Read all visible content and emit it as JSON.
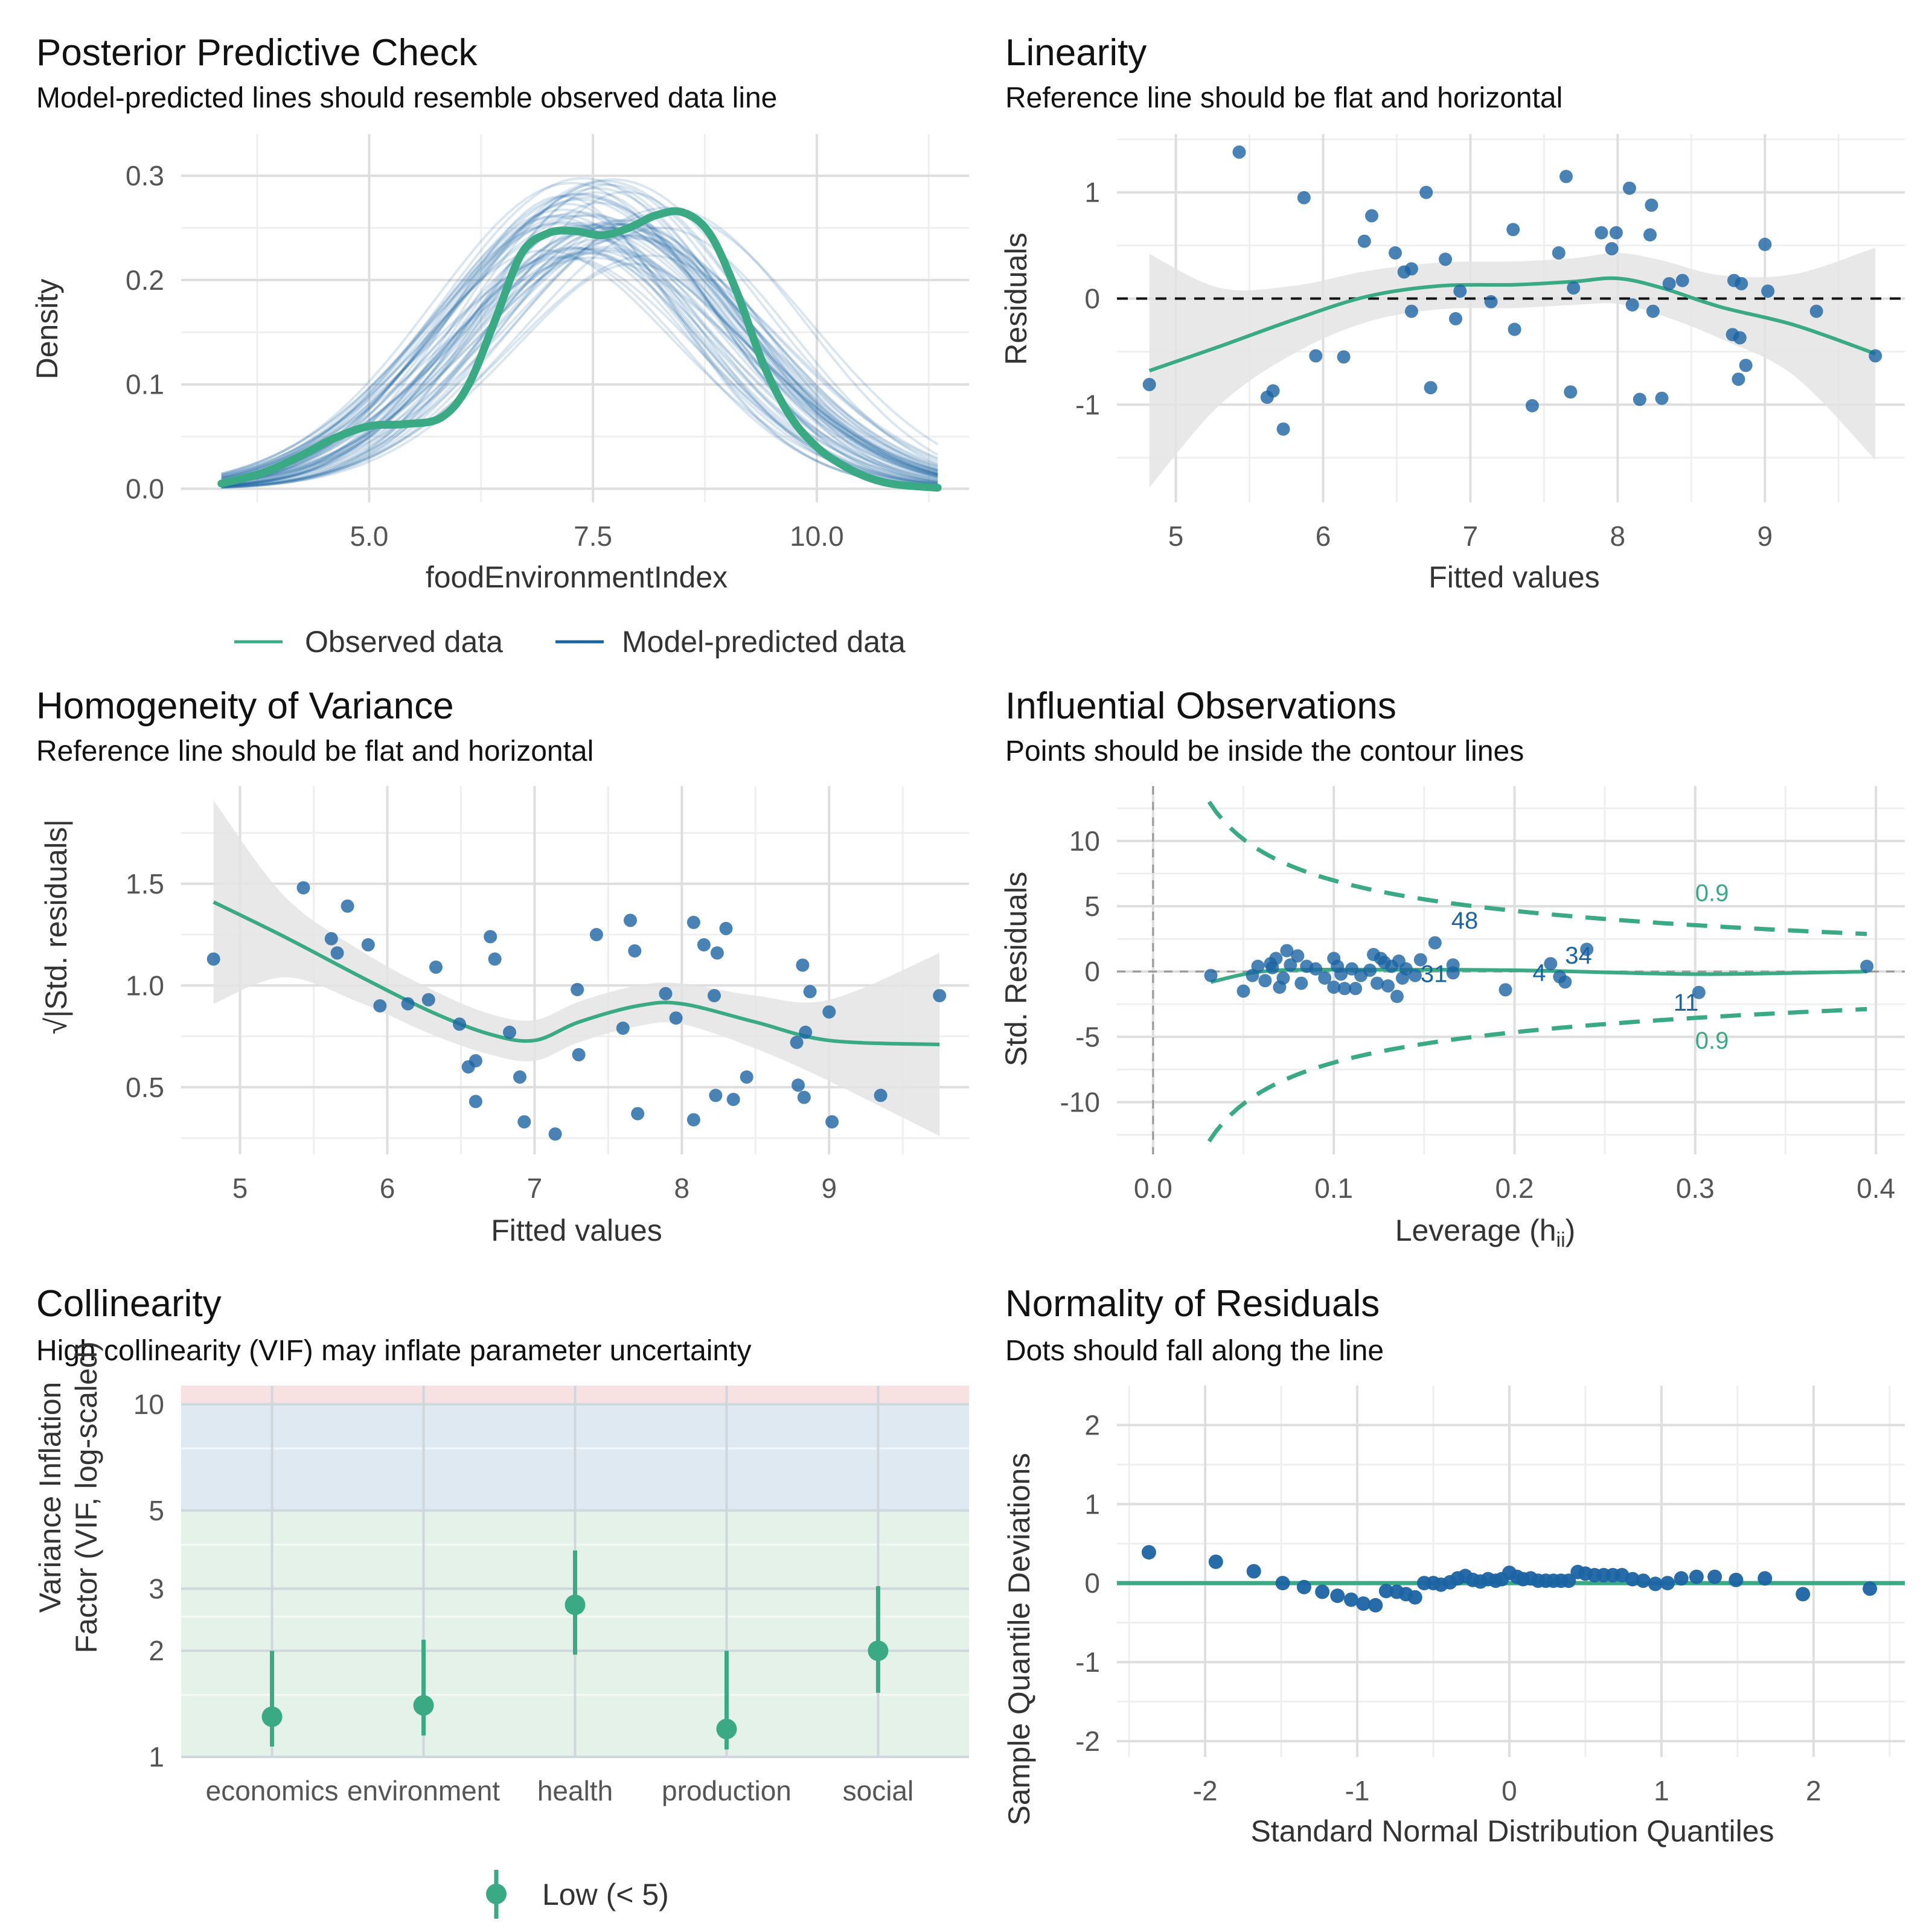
{
  "colors": {
    "observed": "#3aaa85",
    "predicted": "#1b64a3",
    "points": "#1b64a3",
    "smooth": "#3aaa85",
    "ribbon": "#e4e4e4",
    "grid_major": "#dedede",
    "grid_minor": "#efefef",
    "band_low": "#e4f2ea",
    "band_moderate": "#dfe9f1",
    "band_high": "#f8e1e1"
  },
  "chart_data": [
    {
      "id": "ppc",
      "type": "line",
      "title": "Posterior Predictive Check",
      "subtitle": "Model-predicted lines should resemble observed data line",
      "xlabel": "foodEnvironmentIndex",
      "ylabel": "Density",
      "xlim": [
        2.9,
        11.7
      ],
      "ylim": [
        -0.013,
        0.34
      ],
      "xticks": [
        5.0,
        7.5,
        10.0
      ],
      "xtick_labels": [
        "5.0",
        "7.5",
        "10.0"
      ],
      "yticks": [
        0.0,
        0.1,
        0.2,
        0.3
      ],
      "ytick_labels": [
        "0.0",
        "0.1",
        "0.2",
        "0.3"
      ],
      "legend": {
        "position": "bottom",
        "items": [
          "Observed data",
          "Model-predicted data"
        ]
      },
      "x_range": [
        3.35,
        11.35
      ],
      "series": [
        {
          "name": "Observed data",
          "x": [
            3.35,
            3.8,
            4.2,
            4.6,
            5.0,
            5.4,
            5.8,
            6.1,
            6.4,
            6.7,
            7.0,
            7.3,
            7.6,
            7.9,
            8.2,
            8.5,
            8.8,
            9.1,
            9.4,
            9.7,
            10.0,
            10.3,
            10.6,
            10.9,
            11.35
          ],
          "values": [
            0.005,
            0.015,
            0.03,
            0.048,
            0.06,
            0.062,
            0.068,
            0.098,
            0.16,
            0.225,
            0.245,
            0.247,
            0.243,
            0.25,
            0.262,
            0.265,
            0.245,
            0.19,
            0.12,
            0.07,
            0.04,
            0.022,
            0.01,
            0.004,
            0.001
          ]
        },
        {
          "name": "Model-predicted data",
          "mean": 7.6,
          "sd": 1.55,
          "peak": 0.255,
          "count": 60
        }
      ]
    },
    {
      "id": "linearity",
      "type": "scatter",
      "title": "Linearity",
      "subtitle": "Reference line should be flat and horizontal",
      "xlabel": "Fitted values",
      "ylabel": "Residuals",
      "xlim": [
        4.6,
        9.95
      ],
      "ylim": [
        -1.92,
        1.55
      ],
      "xticks": [
        5,
        6,
        7,
        8,
        9
      ],
      "yticks": [
        -1,
        0,
        1
      ],
      "reference_line": 0,
      "points": [
        [
          4.82,
          -0.81
        ],
        [
          5.43,
          1.38
        ],
        [
          5.62,
          -0.93
        ],
        [
          5.66,
          -0.87
        ],
        [
          5.73,
          -1.23
        ],
        [
          5.87,
          0.95
        ],
        [
          5.95,
          -0.54
        ],
        [
          6.14,
          -0.55
        ],
        [
          6.28,
          0.54
        ],
        [
          6.33,
          0.78
        ],
        [
          6.49,
          0.43
        ],
        [
          6.55,
          0.25
        ],
        [
          6.6,
          -0.12
        ],
        [
          6.6,
          0.28
        ],
        [
          6.7,
          1.0
        ],
        [
          6.73,
          -0.84
        ],
        [
          6.83,
          0.37
        ],
        [
          6.9,
          -0.19
        ],
        [
          6.93,
          0.07
        ],
        [
          7.14,
          -0.03
        ],
        [
          7.29,
          0.65
        ],
        [
          7.3,
          -0.29
        ],
        [
          7.42,
          -1.01
        ],
        [
          7.6,
          0.43
        ],
        [
          7.65,
          1.15
        ],
        [
          7.68,
          -0.88
        ],
        [
          7.7,
          0.1
        ],
        [
          7.89,
          0.62
        ],
        [
          7.96,
          0.47
        ],
        [
          7.99,
          0.62
        ],
        [
          8.08,
          1.04
        ],
        [
          8.1,
          -0.06
        ],
        [
          8.15,
          -0.95
        ],
        [
          8.22,
          0.6
        ],
        [
          8.23,
          0.88
        ],
        [
          8.24,
          -0.12
        ],
        [
          8.3,
          -0.94
        ],
        [
          8.35,
          0.14
        ],
        [
          8.44,
          0.17
        ],
        [
          8.78,
          -0.34
        ],
        [
          8.79,
          0.17
        ],
        [
          8.82,
          -0.76
        ],
        [
          8.83,
          -0.37
        ],
        [
          8.84,
          0.14
        ],
        [
          8.87,
          -0.63
        ],
        [
          9.0,
          0.51
        ],
        [
          9.02,
          0.07
        ],
        [
          9.35,
          -0.12
        ],
        [
          9.75,
          -0.54
        ]
      ],
      "smooth": [
        [
          4.82,
          -0.68
        ],
        [
          5.3,
          -0.45
        ],
        [
          5.8,
          -0.2
        ],
        [
          6.3,
          0.02
        ],
        [
          6.8,
          0.12
        ],
        [
          7.3,
          0.13
        ],
        [
          7.7,
          0.16
        ],
        [
          8.0,
          0.19
        ],
        [
          8.3,
          0.1
        ],
        [
          8.7,
          -0.08
        ],
        [
          9.2,
          -0.25
        ],
        [
          9.75,
          -0.52
        ]
      ],
      "ribbon_half_width": [
        [
          4.82,
          1.1
        ],
        [
          5.3,
          0.55
        ],
        [
          5.8,
          0.32
        ],
        [
          6.3,
          0.24
        ],
        [
          6.8,
          0.22
        ],
        [
          7.3,
          0.22
        ],
        [
          7.7,
          0.22
        ],
        [
          8.0,
          0.24
        ],
        [
          8.3,
          0.26
        ],
        [
          8.7,
          0.3
        ],
        [
          9.2,
          0.48
        ],
        [
          9.75,
          1.0
        ]
      ]
    },
    {
      "id": "homogeneity",
      "type": "scatter",
      "title": "Homogeneity of Variance",
      "subtitle": "Reference line should be flat and horizontal",
      "xlabel": "Fitted values",
      "ylabel": "√|Std. residuals|",
      "xlim": [
        4.6,
        9.95
      ],
      "ylim": [
        0.17,
        1.98
      ],
      "xticks": [
        5,
        6,
        7,
        8,
        9
      ],
      "yticks": [
        0.5,
        1.0,
        1.5
      ],
      "ytick_labels": [
        "0.5",
        "1.0",
        "1.5"
      ],
      "points": [
        [
          4.82,
          1.13
        ],
        [
          5.43,
          1.48
        ],
        [
          5.62,
          1.23
        ],
        [
          5.66,
          1.16
        ],
        [
          5.73,
          1.39
        ],
        [
          5.87,
          1.2
        ],
        [
          5.95,
          0.9
        ],
        [
          6.14,
          0.91
        ],
        [
          6.28,
          0.93
        ],
        [
          6.33,
          1.09
        ],
        [
          6.49,
          0.81
        ],
        [
          6.55,
          0.6
        ],
        [
          6.6,
          0.63
        ],
        [
          6.6,
          0.43
        ],
        [
          6.7,
          1.24
        ],
        [
          6.73,
          1.13
        ],
        [
          6.83,
          0.77
        ],
        [
          6.9,
          0.55
        ],
        [
          6.93,
          0.33
        ],
        [
          7.14,
          0.27
        ],
        [
          7.29,
          0.98
        ],
        [
          7.3,
          0.66
        ],
        [
          7.42,
          1.25
        ],
        [
          7.6,
          0.79
        ],
        [
          7.65,
          1.32
        ],
        [
          7.68,
          1.17
        ],
        [
          7.7,
          0.37
        ],
        [
          7.89,
          0.96
        ],
        [
          7.96,
          0.84
        ],
        [
          8.08,
          1.31
        ],
        [
          8.08,
          0.34
        ],
        [
          8.15,
          1.2
        ],
        [
          8.22,
          0.95
        ],
        [
          8.23,
          0.46
        ],
        [
          8.24,
          1.16
        ],
        [
          8.3,
          1.28
        ],
        [
          8.35,
          0.44
        ],
        [
          8.44,
          0.55
        ],
        [
          8.78,
          0.72
        ],
        [
          8.79,
          0.51
        ],
        [
          8.82,
          1.1
        ],
        [
          8.83,
          0.45
        ],
        [
          8.84,
          0.77
        ],
        [
          8.87,
          0.97
        ],
        [
          9.0,
          0.87
        ],
        [
          9.02,
          0.33
        ],
        [
          9.35,
          0.46
        ],
        [
          9.75,
          0.95
        ]
      ],
      "smooth": [
        [
          4.82,
          1.41
        ],
        [
          5.3,
          1.24
        ],
        [
          5.8,
          1.05
        ],
        [
          6.3,
          0.87
        ],
        [
          6.7,
          0.76
        ],
        [
          7.0,
          0.73
        ],
        [
          7.3,
          0.82
        ],
        [
          7.7,
          0.9
        ],
        [
          8.0,
          0.91
        ],
        [
          8.5,
          0.82
        ],
        [
          9.0,
          0.73
        ],
        [
          9.75,
          0.71
        ]
      ],
      "ribbon_half_width": [
        [
          4.82,
          0.5
        ],
        [
          5.3,
          0.2
        ],
        [
          5.8,
          0.13
        ],
        [
          6.3,
          0.11
        ],
        [
          6.7,
          0.1
        ],
        [
          7.0,
          0.1
        ],
        [
          7.3,
          0.1
        ],
        [
          7.7,
          0.1
        ],
        [
          8.0,
          0.1
        ],
        [
          8.5,
          0.13
        ],
        [
          9.0,
          0.2
        ],
        [
          9.75,
          0.45
        ]
      ]
    },
    {
      "id": "influential",
      "type": "scatter",
      "title": "Influential Observations",
      "subtitle": "Points should be inside the contour lines",
      "xlabel": "Leverage (h",
      "xlabel_subscript": "ii",
      "xlabel_end": ")",
      "ylabel": "Std. Residuals",
      "xlim": [
        -0.02,
        0.416
      ],
      "ylim": [
        -14.0,
        14.2
      ],
      "xticks": [
        0.0,
        0.1,
        0.2,
        0.3,
        0.4
      ],
      "xtick_labels": [
        "0.0",
        "0.1",
        "0.2",
        "0.3",
        "0.4"
      ],
      "yticks": [
        -10,
        -5,
        0,
        5,
        10
      ],
      "contour_label": "0.9",
      "contour_xrange": [
        0.031,
        0.395
      ],
      "points": [
        [
          0.032,
          -0.3
        ],
        [
          0.05,
          -1.5
        ],
        [
          0.055,
          -0.3
        ],
        [
          0.058,
          0.4
        ],
        [
          0.062,
          -0.7
        ],
        [
          0.065,
          0.6
        ],
        [
          0.066,
          0.3
        ],
        [
          0.068,
          1.0
        ],
        [
          0.07,
          -1.2
        ],
        [
          0.072,
          -0.5
        ],
        [
          0.074,
          1.6
        ],
        [
          0.076,
          0.5
        ],
        [
          0.08,
          1.2
        ],
        [
          0.082,
          -0.9
        ],
        [
          0.085,
          0.4
        ],
        [
          0.09,
          0.2
        ],
        [
          0.095,
          -0.5
        ],
        [
          0.1,
          -1.2
        ],
        [
          0.1,
          1.0
        ],
        [
          0.102,
          0.4
        ],
        [
          0.104,
          -0.2
        ],
        [
          0.106,
          -1.3
        ],
        [
          0.11,
          0.2
        ],
        [
          0.112,
          -1.3
        ],
        [
          0.115,
          -0.3
        ],
        [
          0.12,
          0.1
        ],
        [
          0.122,
          1.3
        ],
        [
          0.124,
          -0.9
        ],
        [
          0.126,
          1.0
        ],
        [
          0.128,
          0.7
        ],
        [
          0.13,
          -1.1
        ],
        [
          0.132,
          0.4
        ],
        [
          0.135,
          -1.9
        ],
        [
          0.136,
          0.8
        ],
        [
          0.138,
          -0.5
        ],
        [
          0.14,
          0.2
        ],
        [
          0.145,
          -0.3
        ],
        [
          0.148,
          0.9
        ],
        [
          0.156,
          2.2
        ],
        [
          0.166,
          0.5
        ],
        [
          0.166,
          -0.1
        ],
        [
          0.195,
          -1.4
        ],
        [
          0.22,
          0.6
        ],
        [
          0.225,
          -0.4
        ],
        [
          0.228,
          -0.8
        ],
        [
          0.24,
          1.7
        ],
        [
          0.302,
          -1.6
        ],
        [
          0.395,
          0.4
        ]
      ],
      "labels": [
        {
          "text": "48",
          "x": 0.165,
          "y": 3.3
        },
        {
          "text": "31",
          "x": 0.148,
          "y": -0.8
        },
        {
          "text": "4",
          "x": 0.21,
          "y": -0.7
        },
        {
          "text": "34",
          "x": 0.228,
          "y": 0.6
        },
        {
          "text": "11",
          "x": 0.288,
          "y": -3.0
        }
      ],
      "smooth": [
        [
          0.032,
          -0.8
        ],
        [
          0.06,
          0.0
        ],
        [
          0.1,
          0.15
        ],
        [
          0.2,
          0.1
        ],
        [
          0.3,
          -0.2
        ],
        [
          0.395,
          0.0
        ]
      ]
    },
    {
      "id": "collinearity",
      "type": "scatter",
      "title": "Collinearity",
      "subtitle": "High collinearity (VIF) may inflate parameter uncertainty",
      "ylabel": [
        "Variance Inflation",
        "Factor (VIF, log-scaled)"
      ],
      "ylog": true,
      "ylim": [
        1.0,
        11.3
      ],
      "yticks": [
        1,
        2,
        3,
        5,
        10
      ],
      "categories": [
        "economics",
        "environment",
        "health",
        "production",
        "social"
      ],
      "vif": [
        1.3,
        1.4,
        2.7,
        1.2,
        2.0
      ],
      "ci": [
        [
          1.07,
          2.0
        ],
        [
          1.15,
          2.15
        ],
        [
          1.95,
          3.85
        ],
        [
          1.05,
          2.0
        ],
        [
          1.52,
          3.05
        ]
      ],
      "bands": [
        {
          "name": "low",
          "from": 1,
          "to": 5
        },
        {
          "name": "moderate",
          "from": 5,
          "to": 10
        },
        {
          "name": "high",
          "from": 10,
          "to": 11.3
        }
      ],
      "legend": {
        "position": "bottom",
        "items": [
          "Low (< 5)"
        ]
      }
    },
    {
      "id": "normality",
      "type": "scatter",
      "title": "Normality of Residuals",
      "subtitle": "Dots should fall along the line",
      "xlabel": "Standard Normal Distribution Quantiles",
      "ylabel": "Sample Quantile Deviations",
      "xlim": [
        -2.58,
        2.6
      ],
      "ylim": [
        -2.2,
        2.5
      ],
      "xticks": [
        -2,
        -1,
        0,
        1,
        2
      ],
      "yticks": [
        -2,
        -1,
        0,
        1,
        2
      ],
      "reference_line": 0,
      "points": [
        [
          -2.37,
          0.39
        ],
        [
          -1.93,
          0.27
        ],
        [
          -1.68,
          0.15
        ],
        [
          -1.49,
          0.0
        ],
        [
          -1.35,
          -0.05
        ],
        [
          -1.23,
          -0.11
        ],
        [
          -1.13,
          -0.16
        ],
        [
          -1.04,
          -0.21
        ],
        [
          -0.96,
          -0.26
        ],
        [
          -0.88,
          -0.28
        ],
        [
          -0.81,
          -0.1
        ],
        [
          -0.74,
          -0.11
        ],
        [
          -0.68,
          -0.14
        ],
        [
          -0.62,
          -0.18
        ],
        [
          -0.56,
          0.0
        ],
        [
          -0.5,
          0.0
        ],
        [
          -0.45,
          -0.02
        ],
        [
          -0.39,
          0.01
        ],
        [
          -0.34,
          0.06
        ],
        [
          -0.29,
          0.09
        ],
        [
          -0.24,
          0.04
        ],
        [
          -0.19,
          0.02
        ],
        [
          -0.14,
          0.05
        ],
        [
          -0.09,
          0.03
        ],
        [
          -0.05,
          0.05
        ],
        [
          0.0,
          0.13
        ],
        [
          0.05,
          0.08
        ],
        [
          0.09,
          0.05
        ],
        [
          0.14,
          0.06
        ],
        [
          0.19,
          0.03
        ],
        [
          0.24,
          0.03
        ],
        [
          0.29,
          0.03
        ],
        [
          0.34,
          0.03
        ],
        [
          0.39,
          0.03
        ],
        [
          0.45,
          0.14
        ],
        [
          0.5,
          0.12
        ],
        [
          0.56,
          0.1
        ],
        [
          0.62,
          0.1
        ],
        [
          0.68,
          0.1
        ],
        [
          0.74,
          0.1
        ],
        [
          0.81,
          0.05
        ],
        [
          0.88,
          0.03
        ],
        [
          0.96,
          -0.01
        ],
        [
          1.04,
          0.0
        ],
        [
          1.13,
          0.06
        ],
        [
          1.23,
          0.08
        ],
        [
          1.35,
          0.08
        ],
        [
          1.49,
          0.04
        ],
        [
          1.68,
          0.06
        ],
        [
          1.93,
          -0.14
        ],
        [
          2.37,
          -0.07
        ]
      ]
    }
  ]
}
